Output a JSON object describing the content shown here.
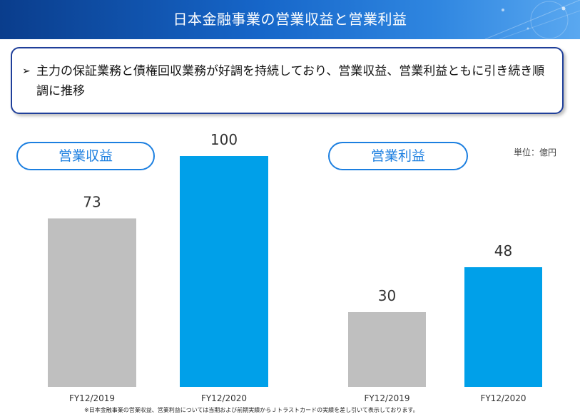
{
  "header": {
    "title": "日本金融事業の営業収益と営業利益"
  },
  "summary": {
    "marker": "➢",
    "text": "主力の保証業務と債権回収業務が好調を持続しており、営業収益、営業利益ともに引き続き順調に推移"
  },
  "unit": "単位：億円",
  "footnote": "※日本金融事業の営業収益、営業利益については当期および前期実績からＪトラストカードの実績を差し引いて表示しております。",
  "colors": {
    "prior_bar": "#bfbfbf",
    "current_bar": "#00a0e9",
    "accent": "#1c7fe0",
    "header": "#1666c9"
  },
  "chart_data": [
    {
      "type": "bar",
      "title": "営業収益",
      "categories": [
        "FY12/2019",
        "FY12/2020"
      ],
      "values": [
        73,
        100
      ],
      "ylim": [
        0,
        100
      ]
    },
    {
      "type": "bar",
      "title": "営業利益",
      "categories": [
        "FY12/2019",
        "FY12/2020"
      ],
      "values": [
        30,
        48
      ],
      "ylim": [
        0,
        48
      ]
    }
  ]
}
